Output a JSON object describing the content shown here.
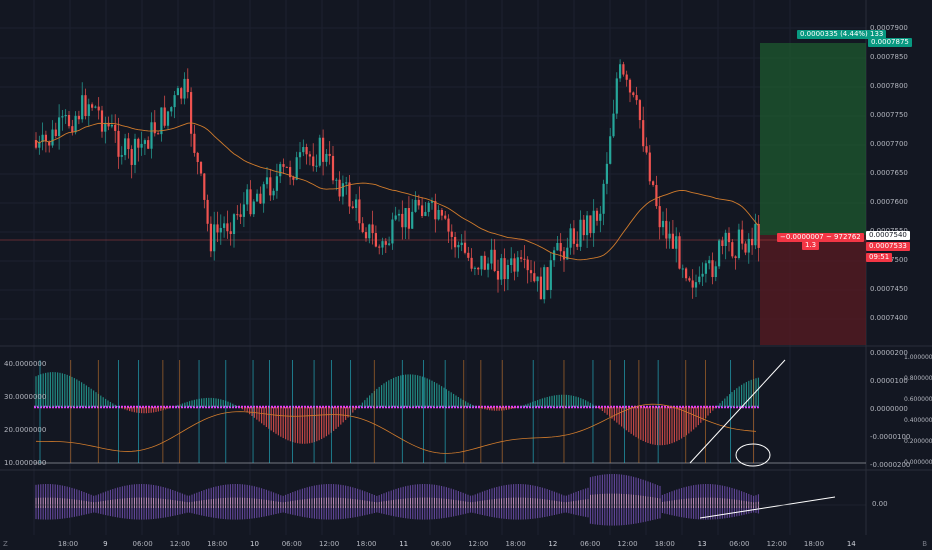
{
  "colors": {
    "bg": "#131722",
    "up": "#26a69a",
    "down": "#ef5350",
    "ma": "#d07b2c",
    "grid": "#1e222d"
  },
  "price_axis": [
    "0.0007900",
    "0.0007850",
    "0.0007800",
    "0.0007750",
    "0.0007700",
    "0.0007650",
    "0.0007600",
    "0.0007550",
    "0.0007500",
    "0.0007450",
    "0.0007400"
  ],
  "osc_left_axis": [
    "40.0000000",
    "30.0000000",
    "20.0000000",
    "10.0000000"
  ],
  "osc_mid_axis": [
    "0.0000200",
    "0.0000100",
    "0.0000000",
    "-0.0000100",
    "-0.0000200"
  ],
  "osc_right_axis": [
    "1.0000000",
    "0.8000000",
    "0.6000000",
    "0.4000000",
    "0.2000000",
    "0.0000000"
  ],
  "bottom_axis": [
    "0.00"
  ],
  "tags": {
    "target": "0.0000335 (4.44%) 133",
    "target_price": "0.0007875",
    "stop": "−0.0000007 ~ 972762",
    "ratio": "1.3",
    "current": "0.0007540",
    "mid": "0.0007533",
    "timer": "09:51"
  },
  "time_axis": [
    "18:00",
    "9",
    "06:00",
    "12:00",
    "18:00",
    "10",
    "06:00",
    "12:00",
    "18:00",
    "11",
    "06:00",
    "12:00",
    "18:00",
    "12",
    "06:00",
    "12:00",
    "18:00",
    "13",
    "06:00",
    "12:00",
    "18:00",
    "14"
  ],
  "icons": {
    "left": "Z",
    "right": "B"
  }
}
